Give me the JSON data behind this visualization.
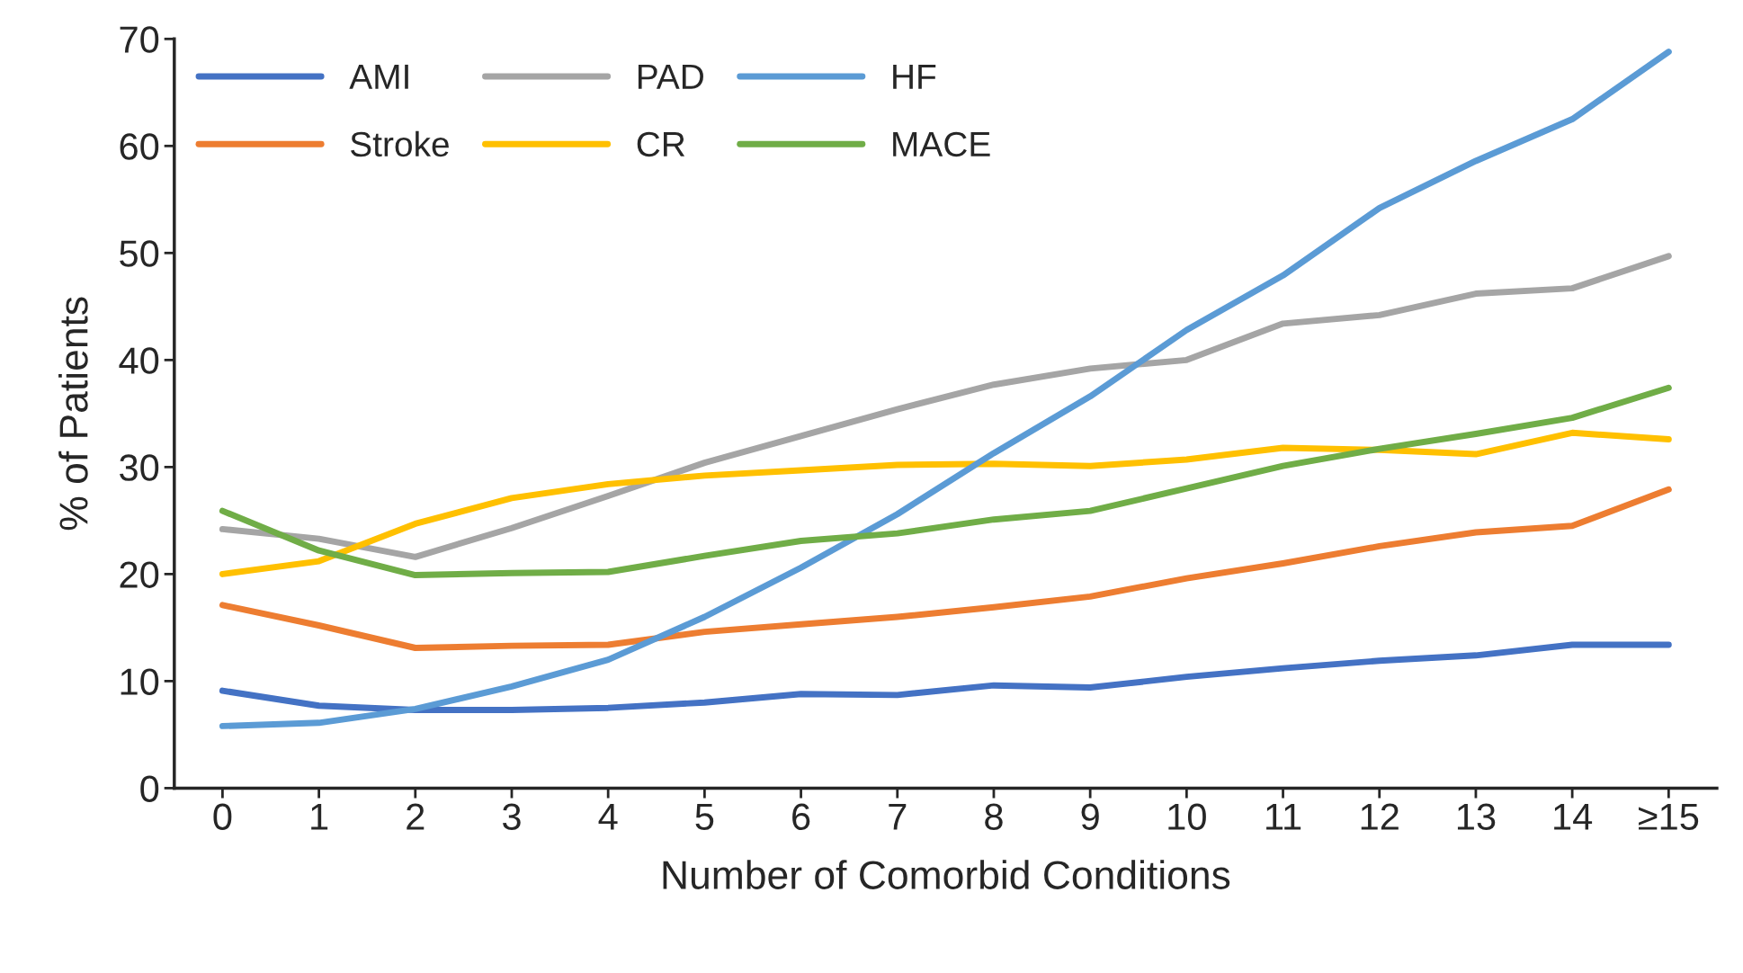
{
  "chart_data": {
    "type": "line",
    "xlabel": "Number of Comorbid Conditions",
    "ylabel": "% of Patients",
    "categories": [
      "0",
      "1",
      "2",
      "3",
      "4",
      "5",
      "6",
      "7",
      "8",
      "9",
      "10",
      "11",
      "12",
      "13",
      "14",
      "≥15"
    ],
    "series": [
      {
        "name": "AMI",
        "color": "#4472c4",
        "values": [
          9.1,
          7.7,
          7.3,
          7.3,
          7.5,
          8.0,
          8.8,
          8.7,
          9.6,
          9.4,
          10.4,
          11.2,
          11.9,
          12.4,
          13.4,
          13.4
        ]
      },
      {
        "name": "Stroke",
        "color": "#ed7d31",
        "values": [
          17.1,
          15.2,
          13.1,
          13.3,
          13.4,
          14.6,
          15.3,
          16.0,
          16.9,
          17.9,
          19.6,
          21.0,
          22.6,
          23.9,
          24.5,
          27.9
        ]
      },
      {
        "name": "PAD",
        "color": "#a5a5a5",
        "values": [
          24.2,
          23.3,
          21.6,
          24.3,
          27.3,
          30.4,
          32.9,
          35.4,
          37.7,
          39.2,
          40.0,
          43.4,
          44.2,
          46.2,
          46.7,
          49.7
        ]
      },
      {
        "name": "CR",
        "color": "#ffc000",
        "values": [
          20.0,
          21.2,
          24.7,
          27.1,
          28.4,
          29.2,
          29.7,
          30.2,
          30.3,
          30.1,
          30.7,
          31.8,
          31.6,
          31.2,
          33.2,
          32.6
        ]
      },
      {
        "name": "HF",
        "color": "#5b9bd5",
        "values": [
          5.8,
          6.1,
          7.4,
          9.5,
          12.0,
          16.0,
          20.6,
          25.6,
          31.3,
          36.6,
          42.8,
          47.9,
          54.2,
          58.6,
          62.5,
          68.8
        ]
      },
      {
        "name": "MACE",
        "color": "#70ad47",
        "values": [
          25.9,
          22.2,
          19.9,
          20.1,
          20.2,
          21.7,
          23.1,
          23.8,
          25.1,
          25.9,
          28.0,
          30.1,
          31.7,
          33.1,
          34.6,
          37.4
        ]
      }
    ],
    "ylim": [
      0,
      70
    ],
    "yticks": [
      0,
      10,
      20,
      30,
      40,
      50,
      60,
      70
    ],
    "grid": false,
    "legend": "top left",
    "marker": "none",
    "line_style": "solid"
  }
}
